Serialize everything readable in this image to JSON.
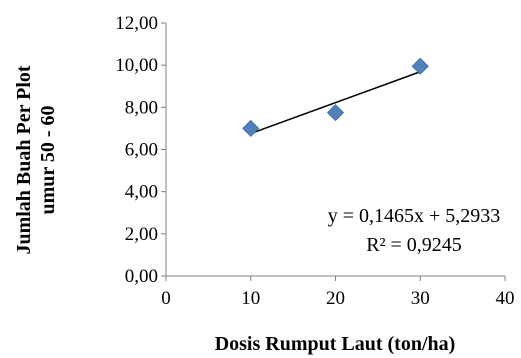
{
  "chart_data": {
    "type": "scatter",
    "title": "",
    "xlabel": "Dosis Rumput Laut (ton/ha)",
    "ylabel_lines": [
      "Jumlah Buah Per Plot",
      "umur 50 - 60"
    ],
    "xlim": [
      0,
      40
    ],
    "ylim": [
      0,
      12
    ],
    "x_ticks": [
      "0",
      "10",
      "20",
      "30",
      "40"
    ],
    "y_ticks": [
      "0,00",
      "2,00",
      "4,00",
      "6,00",
      "8,00",
      "10,00",
      "12,00"
    ],
    "grid": false,
    "legend": "none",
    "marker_color": "#4f81bd",
    "series": [
      {
        "x": [
          10,
          20,
          30
        ],
        "y": [
          7.0,
          7.75,
          9.95
        ]
      }
    ],
    "trendline": {
      "type": "linear",
      "slope": 0.1465,
      "intercept": 5.2933,
      "color": "#000000"
    },
    "annotations": {
      "equation": "y = 0,1465x + 5,2933",
      "r_squared": "R² = 0,9245"
    }
  }
}
